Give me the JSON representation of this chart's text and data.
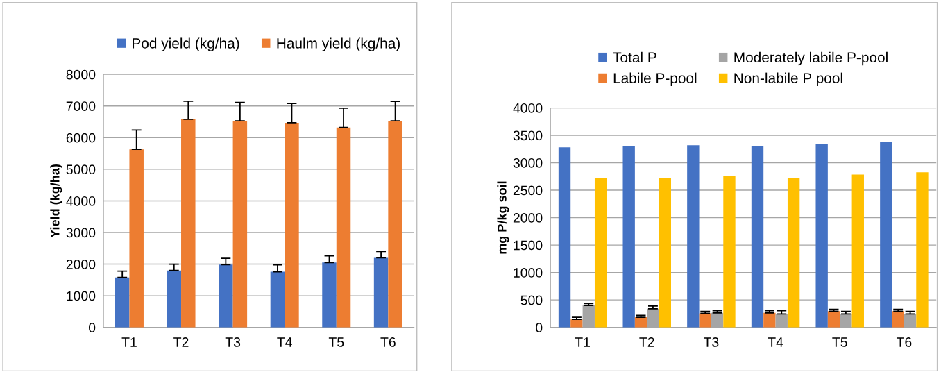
{
  "chart_data": [
    {
      "type": "bar",
      "ylabel": "Yield (kg/ha)",
      "categories": [
        "T1",
        "T2",
        "T3",
        "T4",
        "T5",
        "T6"
      ],
      "ylim": [
        0,
        8000
      ],
      "yticks": [
        0,
        1000,
        2000,
        3000,
        4000,
        5000,
        6000,
        7000,
        8000
      ],
      "grid": "y",
      "legend": "top",
      "series": [
        {
          "name": "Pod yield (kg/ha)",
          "color": "#4472c4",
          "values": [
            1580,
            1800,
            1985,
            1760,
            2050,
            2200
          ],
          "errors": [
            200,
            200,
            200,
            215,
            210,
            200
          ]
        },
        {
          "name": "Haulm yield (kg/ha)",
          "color": "#ed7d31",
          "values": [
            5630,
            6580,
            6530,
            6470,
            6320,
            6530
          ],
          "errors": [
            610,
            570,
            580,
            610,
            610,
            615
          ]
        }
      ]
    },
    {
      "type": "bar",
      "ylabel": "mg P/kg soil",
      "categories": [
        "T1",
        "T2",
        "T3",
        "T4",
        "T5",
        "T6"
      ],
      "ylim": [
        0,
        4000
      ],
      "yticks": [
        0,
        500,
        1000,
        1500,
        2000,
        2500,
        3000,
        3500,
        4000
      ],
      "grid": "y",
      "legend": "top",
      "series": [
        {
          "name": "Total P",
          "color": "#4472c4",
          "values": [
            3280,
            3300,
            3320,
            3300,
            3340,
            3380
          ]
        },
        {
          "name": "Labile P-pool",
          "color": "#ed7d31",
          "values": [
            145,
            185,
            255,
            265,
            295,
            295
          ],
          "errors": [
            40,
            35,
            35,
            40,
            35,
            35
          ]
        },
        {
          "name": "Moderately labile P-pool",
          "color": "#a5a5a5",
          "values": [
            400,
            340,
            265,
            245,
            245,
            245
          ],
          "errors": [
            35,
            50,
            40,
            60,
            45,
            45
          ]
        },
        {
          "name": "Non-labile P pool",
          "color": "#ffc000",
          "values": [
            2725,
            2725,
            2765,
            2725,
            2785,
            2825
          ]
        }
      ]
    }
  ]
}
